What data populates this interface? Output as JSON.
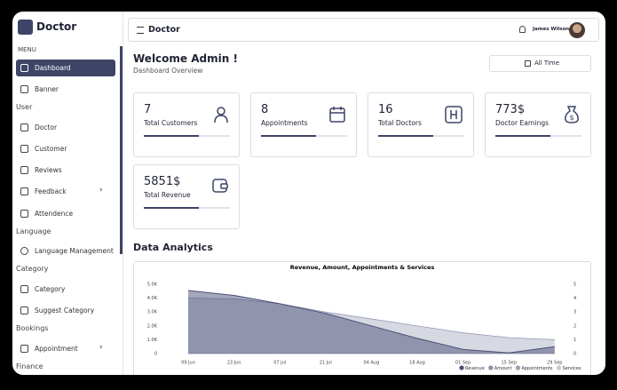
{
  "brand": "Doctor",
  "sidebar": {
    "menu": "MENU",
    "items_top": [
      "Dashboard",
      "Banner"
    ],
    "sections": [
      {
        "title": "User",
        "items": [
          "Doctor",
          "Customer",
          "Reviews",
          "Feedback",
          "Attendence"
        ]
      },
      {
        "title": "Language",
        "items": [
          "Language Management"
        ]
      },
      {
        "title": "Category",
        "items": [
          "Category",
          "Suggest Category"
        ]
      },
      {
        "title": "Bookings",
        "items": [
          "Appointment"
        ]
      },
      {
        "title": "Finance",
        "items": []
      }
    ]
  },
  "header": {
    "title": "Doctor",
    "user": "James Wilson"
  },
  "welcome": {
    "title": "Welcome Admin !",
    "subtitle": "Dashboard Overview",
    "filter": "All Time"
  },
  "stats": [
    {
      "value": 7,
      "label": "Total Customers"
    },
    {
      "value": 8,
      "label": "Appointments"
    },
    {
      "value": 16,
      "label": "Total Doctors"
    },
    {
      "value": "773$",
      "label": "Doctor Earnings"
    },
    {
      "value": "5851$",
      "label": "Total Revenue"
    }
  ],
  "section_title": "Data Analytics",
  "chart_data": {
    "type": "area",
    "title": "Revenue, Amount, Appointments & Services",
    "categories": [
      "09 Jun",
      "23 Jun",
      "07 Jul",
      "21 Jul",
      "04 Aug",
      "18 Aug",
      "01 Sep",
      "15 Sep",
      "29 Sep"
    ],
    "series": [
      {
        "name": "Revenue",
        "color": "#4a5075",
        "values": [
          4550,
          4200,
          3600,
          2900,
          2000,
          1100,
          300,
          50,
          500
        ]
      },
      {
        "name": "Amount",
        "color": "#8a8eab",
        "values": [
          4000,
          3950,
          3600,
          3000,
          2500,
          2000,
          1500,
          1150,
          1000
        ]
      },
      {
        "name": "Appointments",
        "color": "#9a9db3",
        "axis": "y2",
        "values": [
          0,
          0,
          0,
          0,
          0,
          0,
          0,
          0,
          0
        ]
      },
      {
        "name": "Services",
        "color": "#c5c7d4",
        "axis": "y2",
        "values": [
          0,
          0,
          0,
          0,
          0,
          0,
          0,
          0,
          0
        ]
      }
    ],
    "ylim": [
      0,
      5000
    ],
    "yticks": [
      0,
      {
        "value": 1000,
        "label": "1.0K"
      },
      {
        "value": 2000,
        "label": "2.0K"
      },
      {
        "value": 3000,
        "label": "3.0K"
      },
      {
        "value": 4000,
        "label": "4.0K"
      },
      {
        "value": 5000,
        "label": "5.0K"
      }
    ],
    "y2lim": [
      0,
      5
    ],
    "y2ticks": [
      0,
      1,
      2,
      3,
      4,
      5
    ],
    "legend": "bottom-right"
  }
}
